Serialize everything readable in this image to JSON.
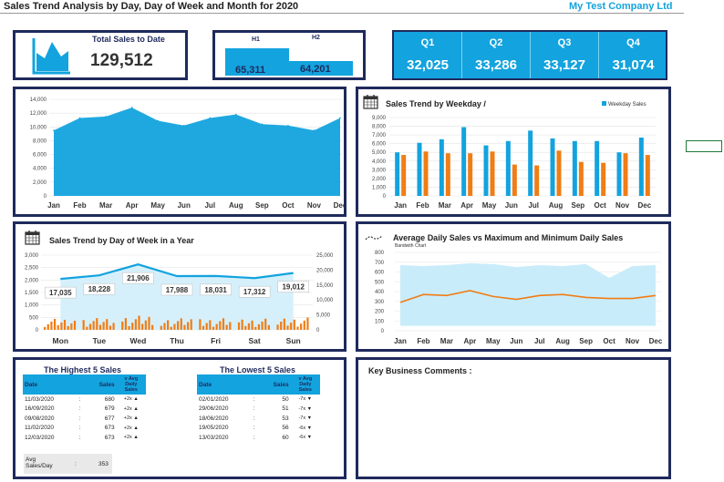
{
  "header": {
    "title": "Sales Trend Analysis by Day, Day of Week and Month for 2020",
    "company": "My Test Company Ltd"
  },
  "kpi_total": {
    "label": "Total Sales to Date",
    "value": "129,512"
  },
  "kpi_halves": {
    "h1_label": "H1",
    "h2_label": "H2",
    "h1_value": "65,311",
    "h2_value": "64,201",
    "h1": 65311,
    "h2": 64201
  },
  "quarters": [
    {
      "label": "Q1",
      "value": "32,025"
    },
    {
      "label": "Q2",
      "value": "33,286"
    },
    {
      "label": "Q3",
      "value": "33,127"
    },
    {
      "label": "Q4",
      "value": "31,074"
    }
  ],
  "colors": {
    "accent": "#13a3de",
    "navy": "#1f2a5c",
    "orange": "#f07d16",
    "light_blue": "#c9ecfa"
  },
  "monthly_chart": {
    "chart_data": {
      "type": "area",
      "categories": [
        "Jan",
        "Feb",
        "Mar",
        "Apr",
        "May",
        "Jun",
        "Jul",
        "Aug",
        "Sep",
        "Oct",
        "Nov",
        "Dec"
      ],
      "values": [
        9500,
        11300,
        11500,
        12800,
        10900,
        10200,
        11300,
        11800,
        10400,
        10200,
        9500,
        11300
      ],
      "ylim": [
        0,
        14000
      ],
      "yticks": [
        "0",
        "2,000",
        "4,000",
        "6,000",
        "8,000",
        "10,000",
        "12,000",
        "14,000"
      ],
      "grid": true
    }
  },
  "weekday_chart": {
    "title": "Sales Trend by Weekday /",
    "legend": "Weekday Sales",
    "chart_data": {
      "type": "bar",
      "categories": [
        "Jan",
        "Feb",
        "Mar",
        "Apr",
        "May",
        "Jun",
        "Jul",
        "Aug",
        "Sep",
        "Oct",
        "Nov",
        "Dec"
      ],
      "series": [
        {
          "values": [
            5000,
            6100,
            6500,
            7900,
            5800,
            6300,
            7500,
            6600,
            6300,
            6300,
            5000,
            6700
          ]
        },
        {
          "name": "Weekday Sales",
          "values": [
            4700,
            5100,
            4900,
            4900,
            5100,
            3600,
            3500,
            5200,
            3900,
            3800,
            4900,
            4700
          ]
        }
      ],
      "ylim": [
        0,
        9000
      ],
      "yticks": [
        "0",
        "1,000",
        "2,000",
        "3,000",
        "4,000",
        "5,000",
        "6,000",
        "7,000",
        "8,000",
        "9,000"
      ],
      "legend_position": "top-right"
    }
  },
  "dow_chart": {
    "title": "Sales Trend by Day of Week in a Year",
    "chart_data": {
      "type": "bar",
      "categories": [
        "Mon",
        "Tue",
        "Wed",
        "Thu",
        "Fri",
        "Sat",
        "Sun"
      ],
      "totals": [
        17035,
        18228,
        21906,
        17988,
        18031,
        17312,
        19012
      ],
      "total_labels": [
        "17,035",
        "18,228",
        "21,906",
        "17,988",
        "18,031",
        "17,312",
        "19,012"
      ],
      "ylim_left": [
        0,
        3000
      ],
      "ylim_right": [
        0,
        25000
      ],
      "yticks_left": [
        "0",
        "500",
        "1,000",
        "1,500",
        "2,000",
        "2,500",
        "3,000"
      ],
      "yticks_right": [
        "0",
        "5,000",
        "10,000",
        "15,000",
        "20,000",
        "25,000"
      ]
    }
  },
  "avg_chart": {
    "title": "Average Daily Sales vs Maximum and Minimum Daily Sales",
    "subtitle": "Bandwith Chart",
    "chart_data": {
      "type": "area",
      "categories": [
        "Jan",
        "Feb",
        "Mar",
        "Apr",
        "May",
        "Jun",
        "Jul",
        "Aug",
        "Sep",
        "Oct",
        "Nov",
        "Dec"
      ],
      "average": [
        290,
        370,
        360,
        410,
        350,
        320,
        360,
        370,
        340,
        330,
        330,
        360
      ],
      "max": [
        670,
        660,
        670,
        690,
        680,
        650,
        670,
        660,
        680,
        540,
        660,
        670
      ],
      "min": [
        50,
        50,
        50,
        50,
        50,
        50,
        50,
        50,
        50,
        50,
        50,
        50
      ],
      "ylim": [
        0,
        800
      ],
      "yticks": [
        "0",
        "100",
        "200",
        "300",
        "400",
        "500",
        "600",
        "700",
        "800"
      ]
    }
  },
  "highest": {
    "title": "The Highest 5 Sales",
    "headers": [
      "Date",
      "Sales",
      "v Avg Daily Sales"
    ],
    "rows": [
      {
        "date": "11/03/2020",
        "sales": "680",
        "vs": "+2x ▲"
      },
      {
        "date": "16/09/2020",
        "sales": "679",
        "vs": "+2x ▲"
      },
      {
        "date": "09/08/2020",
        "sales": "677",
        "vs": "+2x ▲"
      },
      {
        "date": "11/02/2020",
        "sales": "673",
        "vs": "+2x ▲"
      },
      {
        "date": "12/03/2020",
        "sales": "673",
        "vs": "+2x ▲"
      }
    ],
    "avg_label": "Avg Sales/Day",
    "avg_value": "353"
  },
  "lowest": {
    "title": "The Lowest 5 Sales",
    "headers": [
      "Date",
      "Sales",
      "v Avg Daily Sales"
    ],
    "rows": [
      {
        "date": "02/01/2020",
        "sales": "50",
        "vs": "-7x ▼"
      },
      {
        "date": "29/06/2020",
        "sales": "51",
        "vs": "-7x ▼"
      },
      {
        "date": "18/06/2020",
        "sales": "53",
        "vs": "-7x ▼"
      },
      {
        "date": "19/05/2020",
        "sales": "56",
        "vs": "-6x ▼"
      },
      {
        "date": "13/03/2020",
        "sales": "60",
        "vs": "-6x ▼"
      }
    ]
  },
  "comments": {
    "title": "Key Business Comments :"
  }
}
